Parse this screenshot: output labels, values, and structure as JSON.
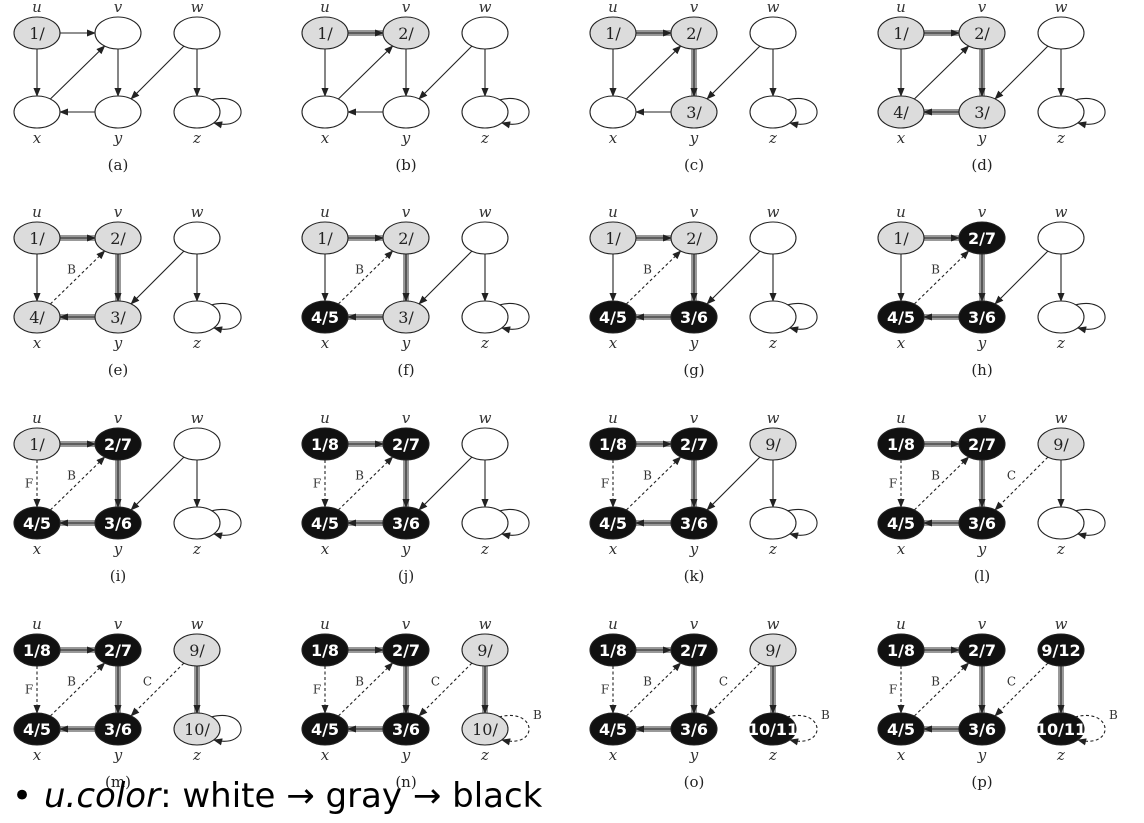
{
  "vertex_names": {
    "u": "u",
    "v": "v",
    "w": "w",
    "x": "x",
    "y": "y",
    "z": "z"
  },
  "edge_labels": {
    "B": "B",
    "F": "F",
    "C": "C"
  },
  "bullet": {
    "field": "u.color",
    "rest": ": white → gray → black"
  },
  "colors": {
    "white": "#ffffff",
    "gray": "#dcdcdc",
    "black": "#111111",
    "tree_edge": "#999999"
  },
  "panels": [
    {
      "caption": "(a)",
      "nodes": {
        "u": {
          "text": "1/",
          "fill": "gray"
        },
        "v": {
          "text": "",
          "fill": "white"
        },
        "w": {
          "text": "",
          "fill": "white"
        },
        "x": {
          "text": "",
          "fill": "white"
        },
        "y": {
          "text": "",
          "fill": "white"
        },
        "z": {
          "text": "",
          "fill": "white"
        }
      },
      "tree": [],
      "labels": {}
    },
    {
      "caption": "(b)",
      "nodes": {
        "u": {
          "text": "1/",
          "fill": "gray"
        },
        "v": {
          "text": "2/",
          "fill": "gray"
        },
        "w": {
          "text": "",
          "fill": "white"
        },
        "x": {
          "text": "",
          "fill": "white"
        },
        "y": {
          "text": "",
          "fill": "white"
        },
        "z": {
          "text": "",
          "fill": "white"
        }
      },
      "tree": [
        "uv"
      ],
      "labels": {}
    },
    {
      "caption": "(c)",
      "nodes": {
        "u": {
          "text": "1/",
          "fill": "gray"
        },
        "v": {
          "text": "2/",
          "fill": "gray"
        },
        "w": {
          "text": "",
          "fill": "white"
        },
        "x": {
          "text": "",
          "fill": "white"
        },
        "y": {
          "text": "3/",
          "fill": "gray"
        },
        "z": {
          "text": "",
          "fill": "white"
        }
      },
      "tree": [
        "uv",
        "vy"
      ],
      "labels": {}
    },
    {
      "caption": "(d)",
      "nodes": {
        "u": {
          "text": "1/",
          "fill": "gray"
        },
        "v": {
          "text": "2/",
          "fill": "gray"
        },
        "w": {
          "text": "",
          "fill": "white"
        },
        "x": {
          "text": "4/",
          "fill": "gray"
        },
        "y": {
          "text": "3/",
          "fill": "gray"
        },
        "z": {
          "text": "",
          "fill": "white"
        }
      },
      "tree": [
        "uv",
        "vy",
        "yx"
      ],
      "labels": {}
    },
    {
      "caption": "(e)",
      "nodes": {
        "u": {
          "text": "1/",
          "fill": "gray"
        },
        "v": {
          "text": "2/",
          "fill": "gray"
        },
        "w": {
          "text": "",
          "fill": "white"
        },
        "x": {
          "text": "4/",
          "fill": "gray"
        },
        "y": {
          "text": "3/",
          "fill": "gray"
        },
        "z": {
          "text": "",
          "fill": "white"
        }
      },
      "tree": [
        "uv",
        "vy",
        "yx"
      ],
      "labels": {
        "xv": "B"
      }
    },
    {
      "caption": "(f)",
      "nodes": {
        "u": {
          "text": "1/",
          "fill": "gray"
        },
        "v": {
          "text": "2/",
          "fill": "gray"
        },
        "w": {
          "text": "",
          "fill": "white"
        },
        "x": {
          "text": "4/5",
          "fill": "black"
        },
        "y": {
          "text": "3/",
          "fill": "gray"
        },
        "z": {
          "text": "",
          "fill": "white"
        }
      },
      "tree": [
        "uv",
        "vy",
        "yx"
      ],
      "labels": {
        "xv": "B"
      }
    },
    {
      "caption": "(g)",
      "nodes": {
        "u": {
          "text": "1/",
          "fill": "gray"
        },
        "v": {
          "text": "2/",
          "fill": "gray"
        },
        "w": {
          "text": "",
          "fill": "white"
        },
        "x": {
          "text": "4/5",
          "fill": "black"
        },
        "y": {
          "text": "3/6",
          "fill": "black"
        },
        "z": {
          "text": "",
          "fill": "white"
        }
      },
      "tree": [
        "uv",
        "vy",
        "yx"
      ],
      "labels": {
        "xv": "B"
      }
    },
    {
      "caption": "(h)",
      "nodes": {
        "u": {
          "text": "1/",
          "fill": "gray"
        },
        "v": {
          "text": "2/7",
          "fill": "black"
        },
        "w": {
          "text": "",
          "fill": "white"
        },
        "x": {
          "text": "4/5",
          "fill": "black"
        },
        "y": {
          "text": "3/6",
          "fill": "black"
        },
        "z": {
          "text": "",
          "fill": "white"
        }
      },
      "tree": [
        "uv",
        "vy",
        "yx"
      ],
      "labels": {
        "xv": "B"
      }
    },
    {
      "caption": "(i)",
      "nodes": {
        "u": {
          "text": "1/",
          "fill": "gray"
        },
        "v": {
          "text": "2/7",
          "fill": "black"
        },
        "w": {
          "text": "",
          "fill": "white"
        },
        "x": {
          "text": "4/5",
          "fill": "black"
        },
        "y": {
          "text": "3/6",
          "fill": "black"
        },
        "z": {
          "text": "",
          "fill": "white"
        }
      },
      "tree": [
        "uv",
        "vy",
        "yx"
      ],
      "labels": {
        "xv": "B",
        "ux": "F"
      }
    },
    {
      "caption": "(j)",
      "nodes": {
        "u": {
          "text": "1/8",
          "fill": "black"
        },
        "v": {
          "text": "2/7",
          "fill": "black"
        },
        "w": {
          "text": "",
          "fill": "white"
        },
        "x": {
          "text": "4/5",
          "fill": "black"
        },
        "y": {
          "text": "3/6",
          "fill": "black"
        },
        "z": {
          "text": "",
          "fill": "white"
        }
      },
      "tree": [
        "uv",
        "vy",
        "yx"
      ],
      "labels": {
        "xv": "B",
        "ux": "F"
      }
    },
    {
      "caption": "(k)",
      "nodes": {
        "u": {
          "text": "1/8",
          "fill": "black"
        },
        "v": {
          "text": "2/7",
          "fill": "black"
        },
        "w": {
          "text": "9/",
          "fill": "gray"
        },
        "x": {
          "text": "4/5",
          "fill": "black"
        },
        "y": {
          "text": "3/6",
          "fill": "black"
        },
        "z": {
          "text": "",
          "fill": "white"
        }
      },
      "tree": [
        "uv",
        "vy",
        "yx"
      ],
      "labels": {
        "xv": "B",
        "ux": "F"
      }
    },
    {
      "caption": "(l)",
      "nodes": {
        "u": {
          "text": "1/8",
          "fill": "black"
        },
        "v": {
          "text": "2/7",
          "fill": "black"
        },
        "w": {
          "text": "9/",
          "fill": "gray"
        },
        "x": {
          "text": "4/5",
          "fill": "black"
        },
        "y": {
          "text": "3/6",
          "fill": "black"
        },
        "z": {
          "text": "",
          "fill": "white"
        }
      },
      "tree": [
        "uv",
        "vy",
        "yx"
      ],
      "labels": {
        "xv": "B",
        "ux": "F",
        "wy": "C"
      }
    },
    {
      "caption": "(m)",
      "nodes": {
        "u": {
          "text": "1/8",
          "fill": "black"
        },
        "v": {
          "text": "2/7",
          "fill": "black"
        },
        "w": {
          "text": "9/",
          "fill": "gray"
        },
        "x": {
          "text": "4/5",
          "fill": "black"
        },
        "y": {
          "text": "3/6",
          "fill": "black"
        },
        "z": {
          "text": "10/",
          "fill": "gray"
        }
      },
      "tree": [
        "uv",
        "vy",
        "yx",
        "wz"
      ],
      "labels": {
        "xv": "B",
        "ux": "F",
        "wy": "C"
      }
    },
    {
      "caption": "(n)",
      "nodes": {
        "u": {
          "text": "1/8",
          "fill": "black"
        },
        "v": {
          "text": "2/7",
          "fill": "black"
        },
        "w": {
          "text": "9/",
          "fill": "gray"
        },
        "x": {
          "text": "4/5",
          "fill": "black"
        },
        "y": {
          "text": "3/6",
          "fill": "black"
        },
        "z": {
          "text": "10/",
          "fill": "gray"
        }
      },
      "tree": [
        "uv",
        "vy",
        "yx",
        "wz"
      ],
      "labels": {
        "xv": "B",
        "ux": "F",
        "wy": "C",
        "zz": "B"
      }
    },
    {
      "caption": "(o)",
      "nodes": {
        "u": {
          "text": "1/8",
          "fill": "black"
        },
        "v": {
          "text": "2/7",
          "fill": "black"
        },
        "w": {
          "text": "9/",
          "fill": "gray"
        },
        "x": {
          "text": "4/5",
          "fill": "black"
        },
        "y": {
          "text": "3/6",
          "fill": "black"
        },
        "z": {
          "text": "10/11",
          "fill": "black"
        }
      },
      "tree": [
        "uv",
        "vy",
        "yx",
        "wz"
      ],
      "labels": {
        "xv": "B",
        "ux": "F",
        "wy": "C",
        "zz": "B"
      }
    },
    {
      "caption": "(p)",
      "nodes": {
        "u": {
          "text": "1/8",
          "fill": "black"
        },
        "v": {
          "text": "2/7",
          "fill": "black"
        },
        "w": {
          "text": "9/12",
          "fill": "black"
        },
        "x": {
          "text": "4/5",
          "fill": "black"
        },
        "y": {
          "text": "3/6",
          "fill": "black"
        },
        "z": {
          "text": "10/11",
          "fill": "black"
        }
      },
      "tree": [
        "uv",
        "vy",
        "yx",
        "wz"
      ],
      "labels": {
        "xv": "B",
        "ux": "F",
        "wy": "C",
        "zz": "B"
      }
    }
  ]
}
